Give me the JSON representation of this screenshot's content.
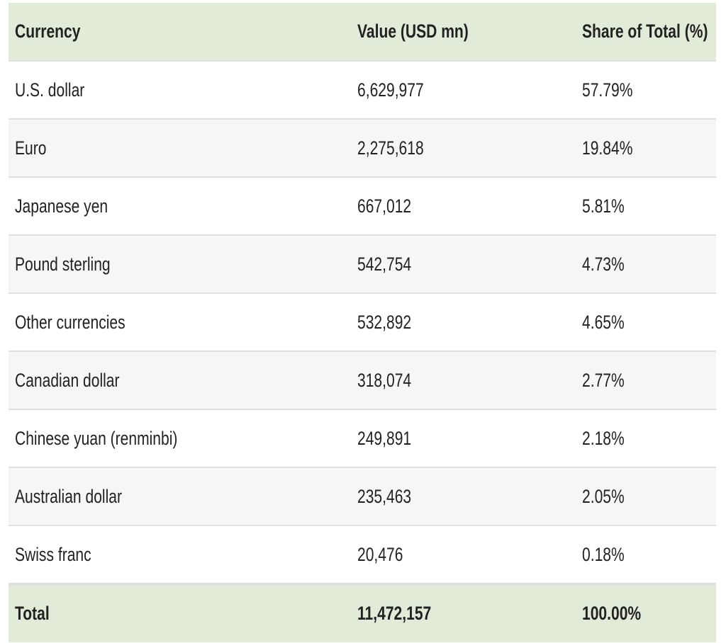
{
  "table": {
    "header": [
      "Currency",
      "Value (USD mn)",
      "Share of Total (%)"
    ],
    "rows": [
      [
        "U.S. dollar",
        "6,629,977",
        "57.79%"
      ],
      [
        "Euro",
        "2,275,618",
        "19.84%"
      ],
      [
        "Japanese yen",
        "667,012",
        "5.81%"
      ],
      [
        "Pound sterling",
        "542,754",
        "4.73%"
      ],
      [
        "Other currencies",
        "532,892",
        "4.65%"
      ],
      [
        "Canadian dollar",
        "318,074",
        "2.77%"
      ],
      [
        "Chinese yuan (renminbi)",
        "249,891",
        "2.18%"
      ],
      [
        "Australian dollar",
        "235,463",
        "2.05%"
      ],
      [
        "Swiss franc",
        "20,476",
        "0.18%"
      ]
    ],
    "footer": [
      "Total",
      "11,472,157",
      "100.00%"
    ]
  }
}
